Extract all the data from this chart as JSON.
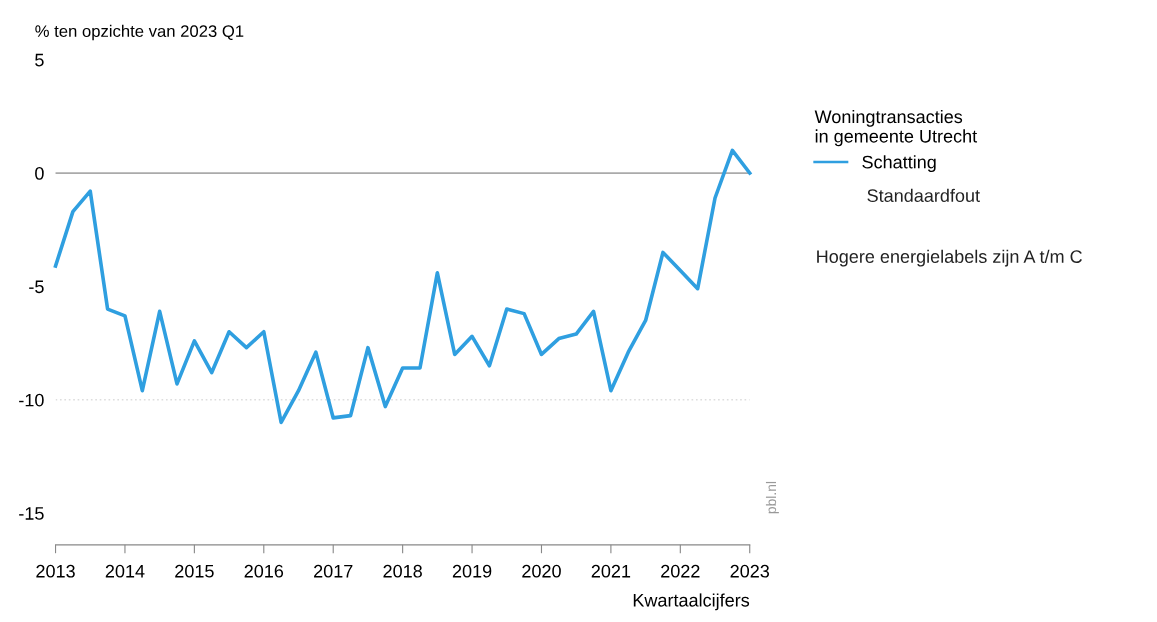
{
  "chart_data": {
    "type": "line",
    "ylabel": "% ten opzichte van 2023 Q1",
    "xlabel": "Kwartaalcijfers",
    "legend_title": "Woningtransacties\nin gemeente Utrecht",
    "legend": "right",
    "x": [
      2013,
      2013.25,
      2013.5,
      2013.75,
      2014,
      2014.25,
      2014.5,
      2014.75,
      2015,
      2015.25,
      2015.5,
      2015.75,
      2016,
      2016.25,
      2016.5,
      2016.75,
      2017,
      2017.25,
      2017.5,
      2017.75,
      2018,
      2018.25,
      2018.5,
      2018.75,
      2019,
      2019.25,
      2019.5,
      2019.75,
      2020,
      2020.25,
      2020.5,
      2020.75,
      2021,
      2021.25,
      2021.5,
      2021.75,
      2022,
      2022.25,
      2022.5,
      2022.75,
      2023
    ],
    "series": [
      {
        "name": "Schatting",
        "color": "#2f9fe0",
        "values": [
          -4.1,
          -1.7,
          -0.8,
          -6.0,
          -6.3,
          -9.6,
          -6.1,
          -9.3,
          -7.4,
          -8.8,
          -7.0,
          -7.7,
          -7.0,
          -11.0,
          -9.6,
          -7.9,
          -10.8,
          -10.7,
          -7.7,
          -10.3,
          -8.6,
          -8.6,
          -4.4,
          -8.0,
          -7.2,
          -8.5,
          -6.0,
          -6.2,
          -8.0,
          -7.3,
          -7.1,
          -6.1,
          -9.6,
          -7.9,
          -6.5,
          -3.5,
          -4.3,
          -5.1,
          -1.1,
          1.0,
          0.0
        ]
      }
    ],
    "xlim": [
      2013,
      2023
    ],
    "xticks": [
      2013,
      2014,
      2015,
      2016,
      2017,
      2018,
      2019,
      2020,
      2021,
      2022,
      2023
    ],
    "ylim": [
      -16.4,
      5
    ],
    "yticks": [
      -15,
      -10,
      -5,
      0,
      5
    ],
    "ref_lines": [
      {
        "axis": "y",
        "value": 0,
        "color": "#aaaaaa",
        "line_style": "solid"
      },
      {
        "axis": "y",
        "value": -10,
        "color": "#dddddd",
        "line_style": "dotted"
      }
    ],
    "annotations": [
      "Standaardfout",
      "Hogere energielabels zijn A t/m C",
      "pbl.nl"
    ],
    "marker": "none",
    "line_style": "solid"
  }
}
